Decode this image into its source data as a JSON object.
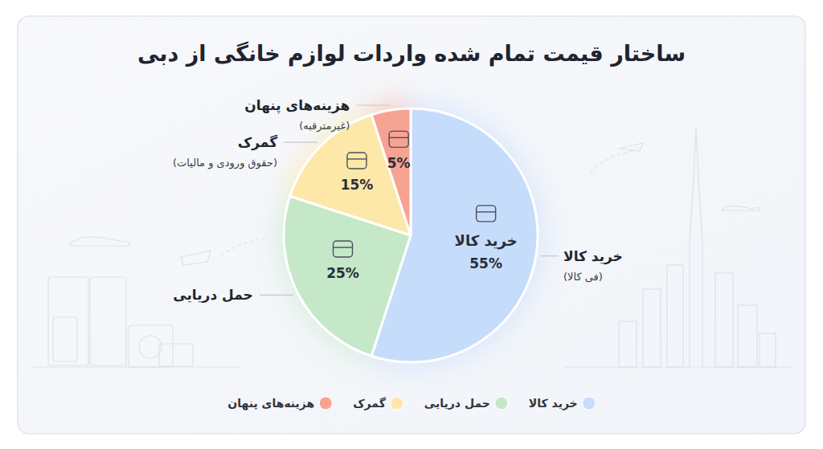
{
  "chart_data": {
    "type": "pie",
    "title": "ساختار قیمت تمام شده واردات لوازم خانگی از دبی",
    "categories": [
      "خرید کالا",
      "حمل دریایی",
      "گمرک",
      "هزینه‌های پنهان"
    ],
    "category_notes": [
      "(فی کالا)",
      null,
      "(حقوق ورودی و مالیات)",
      "(غیرمترقبه)"
    ],
    "values": [
      55,
      25,
      15,
      5
    ],
    "value_labels": [
      "55%",
      "25%",
      "15%",
      "5%"
    ],
    "colors": [
      "#c6dcfb",
      "#c5e8c9",
      "#fde8a9",
      "#f7a391"
    ],
    "data_labels": true,
    "legend": "bottom"
  }
}
